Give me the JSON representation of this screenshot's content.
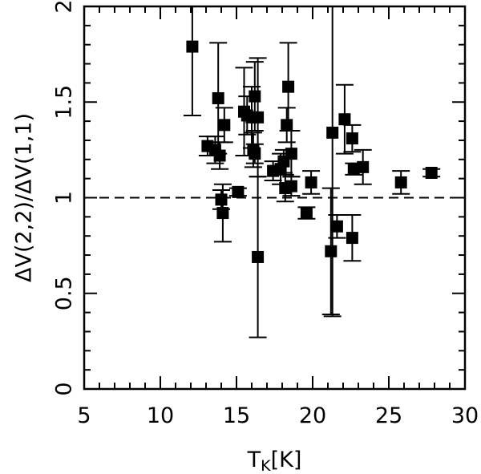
{
  "chart_data": {
    "type": "scatter",
    "xlabel": "T",
    "xlabel_sub": "K",
    "xlabel_unit": "[K]",
    "ylabel": "ΔV(2,2)/ΔV(1,1)",
    "xlim": [
      5,
      30
    ],
    "ylim": [
      0,
      2
    ],
    "x_ticks": [
      5,
      10,
      15,
      20,
      25,
      30
    ],
    "y_ticks": [
      0,
      0.5,
      1,
      1.5,
      2
    ],
    "x_tick_labels": [
      "5",
      "10",
      "15",
      "20",
      "25",
      "30"
    ],
    "y_tick_labels": [
      "0",
      "0.5",
      "1",
      "1.5",
      "2"
    ],
    "grid": false,
    "reference_line": {
      "y": 1,
      "style": "dashed"
    },
    "marker": "filled-square",
    "color": "#000000",
    "points": [
      {
        "x": 12.1,
        "y": 1.79,
        "err_lo": 0.36,
        "err_hi": 0.3
      },
      {
        "x": 13.1,
        "y": 1.27,
        "err_lo": 0.05,
        "err_hi": 0.05
      },
      {
        "x": 13.6,
        "y": 1.25,
        "err_lo": 0.07,
        "err_hi": 0.07
      },
      {
        "x": 13.8,
        "y": 1.52,
        "err_lo": 0.29,
        "err_hi": 0.29
      },
      {
        "x": 13.9,
        "y": 1.22,
        "err_lo": 0.07,
        "err_hi": 0.07
      },
      {
        "x": 14.0,
        "y": 0.99,
        "err_lo": 0.05,
        "err_hi": 0.05
      },
      {
        "x": 14.1,
        "y": 0.92,
        "err_lo": 0.15,
        "err_hi": 0.15
      },
      {
        "x": 14.2,
        "y": 1.38,
        "err_lo": 0.09,
        "err_hi": 0.09
      },
      {
        "x": 15.1,
        "y": 1.03,
        "err_lo": 0.02,
        "err_hi": 0.02
      },
      {
        "x": 15.5,
        "y": 1.45,
        "err_lo": 0.23,
        "err_hi": 0.23
      },
      {
        "x": 15.7,
        "y": 1.43,
        "err_lo": 0.1,
        "err_hi": 0.1
      },
      {
        "x": 16.0,
        "y": 1.42,
        "err_lo": 0.16,
        "err_hi": 0.16
      },
      {
        "x": 16.1,
        "y": 1.25,
        "err_lo": 0.09,
        "err_hi": 0.09
      },
      {
        "x": 16.2,
        "y": 1.23,
        "err_lo": 0.05,
        "err_hi": 0.05
      },
      {
        "x": 16.2,
        "y": 1.53,
        "err_lo": 0.18,
        "err_hi": 0.18
      },
      {
        "x": 16.4,
        "y": 1.42,
        "err_lo": 0.31,
        "err_hi": 0.31
      },
      {
        "x": 16.4,
        "y": 0.69,
        "err_lo": 0.42,
        "err_hi": 0.42
      },
      {
        "x": 17.4,
        "y": 1.14,
        "err_lo": 0.05,
        "err_hi": 0.05
      },
      {
        "x": 17.9,
        "y": 1.15,
        "err_lo": 0.08,
        "err_hi": 0.08
      },
      {
        "x": 18.1,
        "y": 1.19,
        "err_lo": 0.06,
        "err_hi": 0.06
      },
      {
        "x": 18.2,
        "y": 1.05,
        "err_lo": 0.07,
        "err_hi": 0.07
      },
      {
        "x": 18.3,
        "y": 1.38,
        "err_lo": 0.09,
        "err_hi": 0.09
      },
      {
        "x": 18.4,
        "y": 1.58,
        "err_lo": 0.23,
        "err_hi": 0.23
      },
      {
        "x": 18.6,
        "y": 1.23,
        "err_lo": 0.12,
        "err_hi": 0.12
      },
      {
        "x": 18.6,
        "y": 1.06,
        "err_lo": 0.05,
        "err_hi": 0.05
      },
      {
        "x": 19.6,
        "y": 0.92,
        "err_lo": 0.03,
        "err_hi": 0.03
      },
      {
        "x": 19.9,
        "y": 1.08,
        "err_lo": 0.06,
        "err_hi": 0.06
      },
      {
        "x": 21.2,
        "y": 0.72,
        "err_lo": 0.33,
        "err_hi": 0.33
      },
      {
        "x": 21.3,
        "y": 1.34,
        "err_lo": 0.96,
        "err_hi": 0.96
      },
      {
        "x": 21.6,
        "y": 0.85,
        "err_lo": 0.06,
        "err_hi": 0.06
      },
      {
        "x": 22.1,
        "y": 1.41,
        "err_lo": 0.18,
        "err_hi": 0.18
      },
      {
        "x": 22.6,
        "y": 1.31,
        "err_lo": 0.07,
        "err_hi": 0.07
      },
      {
        "x": 22.6,
        "y": 0.79,
        "err_lo": 0.12,
        "err_hi": 0.12
      },
      {
        "x": 22.7,
        "y": 1.15,
        "err_lo": 0.03,
        "err_hi": 0.03
      },
      {
        "x": 23.3,
        "y": 1.16,
        "err_lo": 0.09,
        "err_hi": 0.09
      },
      {
        "x": 25.8,
        "y": 1.08,
        "err_lo": 0.06,
        "err_hi": 0.06
      },
      {
        "x": 27.8,
        "y": 1.13,
        "err_lo": 0.02,
        "err_hi": 0.02
      }
    ]
  }
}
